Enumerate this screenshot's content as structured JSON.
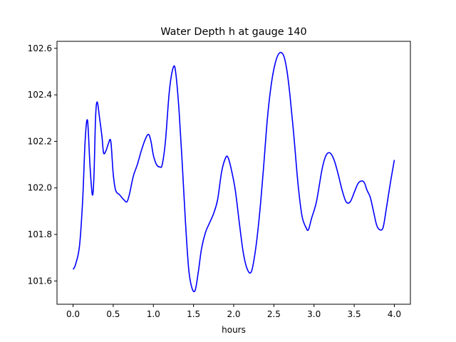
{
  "chart_data": {
    "type": "line",
    "title": "Water Depth h at gauge 140",
    "xlabel": "hours",
    "ylabel": "",
    "xlim": [
      -0.2,
      4.2
    ],
    "ylim": [
      101.5,
      102.63
    ],
    "xticks": [
      0.0,
      0.5,
      1.0,
      1.5,
      2.0,
      2.5,
      3.0,
      3.5,
      4.0
    ],
    "xtick_labels": [
      "0.0",
      "0.5",
      "1.0",
      "1.5",
      "2.0",
      "2.5",
      "3.0",
      "3.5",
      "4.0"
    ],
    "yticks": [
      101.6,
      101.8,
      102.0,
      102.2,
      102.4,
      102.6
    ],
    "ytick_labels": [
      "101.6",
      "101.8",
      "102.0",
      "102.2",
      "102.4",
      "102.6"
    ],
    "grid": false,
    "series": [
      {
        "color": "#0000ff",
        "x": [
          0.0,
          0.03,
          0.08,
          0.12,
          0.15,
          0.18,
          0.21,
          0.24,
          0.26,
          0.28,
          0.3,
          0.33,
          0.36,
          0.38,
          0.41,
          0.44,
          0.47,
          0.5,
          0.53,
          0.58,
          0.63,
          0.67,
          0.7,
          0.75,
          0.8,
          0.85,
          0.9,
          0.94,
          0.97,
          1.0,
          1.04,
          1.08,
          1.11,
          1.15,
          1.2,
          1.25,
          1.28,
          1.32,
          1.36,
          1.4,
          1.44,
          1.48,
          1.52,
          1.56,
          1.6,
          1.65,
          1.7,
          1.75,
          1.8,
          1.85,
          1.9,
          1.93,
          1.97,
          2.02,
          2.07,
          2.12,
          2.17,
          2.22,
          2.27,
          2.32,
          2.37,
          2.42,
          2.47,
          2.52,
          2.57,
          2.62,
          2.66,
          2.7,
          2.75,
          2.8,
          2.85,
          2.9,
          2.93,
          2.97,
          3.03,
          3.1,
          3.15,
          3.2,
          3.25,
          3.3,
          3.35,
          3.4,
          3.45,
          3.5,
          3.55,
          3.6,
          3.63,
          3.66,
          3.7,
          3.74,
          3.78,
          3.82,
          3.86,
          3.9,
          3.95,
          4.0
        ],
        "y": [
          101.65,
          101.67,
          101.75,
          101.95,
          102.2,
          102.29,
          102.1,
          101.97,
          102.05,
          102.3,
          102.37,
          102.3,
          102.22,
          102.15,
          102.16,
          102.19,
          102.2,
          102.06,
          101.99,
          101.97,
          101.95,
          101.94,
          101.97,
          102.05,
          102.1,
          102.16,
          102.21,
          102.23,
          102.2,
          102.14,
          102.1,
          102.09,
          102.1,
          102.2,
          102.42,
          102.52,
          102.49,
          102.33,
          102.1,
          101.85,
          101.65,
          101.57,
          101.56,
          101.64,
          101.74,
          101.81,
          101.85,
          101.89,
          101.95,
          102.07,
          102.13,
          102.13,
          102.08,
          101.99,
          101.85,
          101.72,
          101.65,
          101.64,
          101.73,
          101.88,
          102.08,
          102.3,
          102.45,
          102.54,
          102.58,
          102.57,
          102.51,
          102.4,
          102.22,
          102.02,
          101.88,
          101.83,
          101.82,
          101.87,
          101.94,
          102.08,
          102.14,
          102.15,
          102.12,
          102.06,
          101.99,
          101.94,
          101.94,
          101.98,
          102.02,
          102.03,
          102.02,
          101.99,
          101.96,
          101.9,
          101.84,
          101.82,
          101.83,
          101.91,
          102.02,
          102.12
        ]
      }
    ]
  }
}
